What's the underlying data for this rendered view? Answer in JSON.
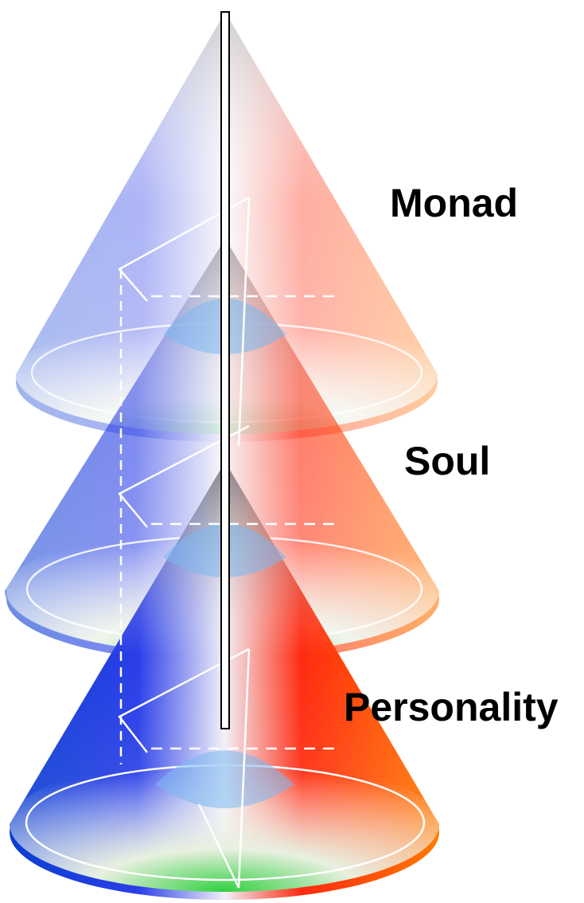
{
  "nodes": [
    {
      "label": "Monad"
    },
    {
      "label": "Soul"
    },
    {
      "label": "Personality"
    }
  ]
}
